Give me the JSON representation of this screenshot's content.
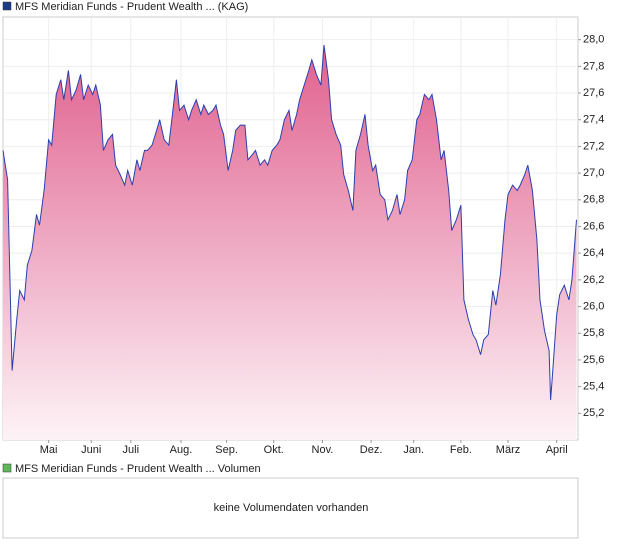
{
  "chart_data": {
    "type": "area",
    "title": "MFS Meridian Funds - Prudent Wealth ... (KAG)",
    "legend_color": "#1a3a8a",
    "x": [
      0,
      3,
      6,
      9,
      11,
      14,
      16,
      19,
      22,
      24,
      27,
      30,
      32,
      35,
      38,
      40,
      43,
      45,
      48,
      51,
      53,
      56,
      59,
      61,
      64,
      66,
      69,
      72,
      74,
      77,
      80,
      82,
      85,
      88,
      90,
      93,
      95,
      98,
      101,
      103,
      106,
      109,
      111,
      114,
      116,
      119,
      122,
      124,
      127,
      130,
      132,
      135,
      138,
      140,
      143,
      145,
      148,
      151,
      153,
      156,
      159,
      161,
      164,
      166,
      169,
      172,
      174,
      177,
      180,
      182,
      185,
      188,
      190,
      193,
      195,
      198,
      201,
      203,
      206,
      209,
      211,
      214,
      216,
      219,
      222,
      224,
      227,
      230,
      232,
      235,
      238,
      240,
      243,
      245,
      248,
      251,
      253,
      256,
      259,
      261,
      264,
      266,
      269,
      272,
      274,
      277,
      280,
      282,
      285,
      288,
      290,
      293,
      295,
      298,
      301,
      303,
      306,
      309,
      311,
      314,
      316,
      319,
      322,
      324,
      327,
      330,
      332,
      335,
      338,
      340,
      343,
      345,
      348,
      351,
      353,
      356,
      359,
      360,
      361,
      364,
      366,
      369,
      372,
      374,
      377
    ],
    "series": [
      {
        "color": "#2b3fae",
        "fill_top": "#e0608e",
        "fill_bottom": "#fdf3f7",
        "values": [
          27.17,
          26.95,
          25.52,
          25.9,
          26.12,
          26.05,
          26.31,
          26.42,
          26.69,
          26.61,
          26.87,
          27.25,
          27.21,
          27.59,
          27.7,
          27.55,
          27.77,
          27.55,
          27.62,
          27.74,
          27.55,
          27.66,
          27.59,
          27.66,
          27.51,
          27.17,
          27.25,
          27.29,
          27.06,
          26.99,
          26.91,
          27.02,
          26.91,
          27.1,
          27.02,
          27.17,
          27.17,
          27.21,
          27.32,
          27.4,
          27.25,
          27.21,
          27.4,
          27.7,
          27.47,
          27.51,
          27.4,
          27.47,
          27.55,
          27.44,
          27.51,
          27.44,
          27.47,
          27.51,
          27.36,
          27.29,
          27.02,
          27.17,
          27.32,
          27.36,
          27.36,
          27.1,
          27.14,
          27.17,
          27.06,
          27.1,
          27.06,
          27.17,
          27.21,
          27.25,
          27.4,
          27.47,
          27.32,
          27.44,
          27.55,
          27.66,
          27.77,
          27.85,
          27.74,
          27.66,
          27.96,
          27.7,
          27.4,
          27.29,
          27.21,
          26.99,
          26.87,
          26.72,
          27.17,
          27.29,
          27.44,
          27.21,
          27.02,
          27.06,
          26.84,
          26.8,
          26.65,
          26.72,
          26.84,
          26.69,
          26.8,
          27.02,
          27.1,
          27.4,
          27.44,
          27.59,
          27.55,
          27.59,
          27.4,
          27.1,
          27.17,
          26.87,
          26.57,
          26.65,
          26.76,
          26.05,
          25.9,
          25.79,
          25.75,
          25.64,
          25.75,
          25.79,
          26.12,
          26.01,
          26.24,
          26.65,
          26.84,
          26.91,
          26.87,
          26.91,
          26.99,
          27.06,
          26.87,
          26.5,
          26.05,
          25.82,
          25.67,
          25.3,
          25.45,
          25.94,
          26.09,
          26.16,
          26.05,
          26.2,
          26.65
        ]
      }
    ],
    "xlim": [
      0,
      378
    ],
    "ylim": [
      25.0,
      28.17
    ],
    "xticks": [
      {
        "value": 30,
        "label": "Mai"
      },
      {
        "value": 58,
        "label": "Juni"
      },
      {
        "value": 84,
        "label": "Juli"
      },
      {
        "value": 117,
        "label": "Aug."
      },
      {
        "value": 147,
        "label": "Sep."
      },
      {
        "value": 178,
        "label": "Okt."
      },
      {
        "value": 210,
        "label": "Nov."
      },
      {
        "value": 242,
        "label": "Dez."
      },
      {
        "value": 270,
        "label": "Jan."
      },
      {
        "value": 301,
        "label": "Feb."
      },
      {
        "value": 332,
        "label": "März"
      },
      {
        "value": 364,
        "label": "April"
      }
    ],
    "yticks": [
      {
        "value": 25.2,
        "label": "25,2"
      },
      {
        "value": 25.4,
        "label": "25,4"
      },
      {
        "value": 25.6,
        "label": "25,6"
      },
      {
        "value": 25.8,
        "label": "25,8"
      },
      {
        "value": 26.0,
        "label": "26,0"
      },
      {
        "value": 26.2,
        "label": "26,2"
      },
      {
        "value": 26.4,
        "label": "26,4"
      },
      {
        "value": 26.6,
        "label": "26,6"
      },
      {
        "value": 26.8,
        "label": "26,8"
      },
      {
        "value": 27.0,
        "label": "27,0"
      },
      {
        "value": 27.2,
        "label": "27,2"
      },
      {
        "value": 27.4,
        "label": "27,4"
      },
      {
        "value": 27.6,
        "label": "27,6"
      },
      {
        "value": 27.8,
        "label": "27,8"
      },
      {
        "value": 28.0,
        "label": "28,0"
      }
    ],
    "grid": true
  },
  "volume_panel": {
    "title": "MFS Meridian Funds - Prudent Wealth ... Volumen",
    "legend_color": "#5cb85c",
    "message": "keine Volumendaten vorhanden"
  }
}
